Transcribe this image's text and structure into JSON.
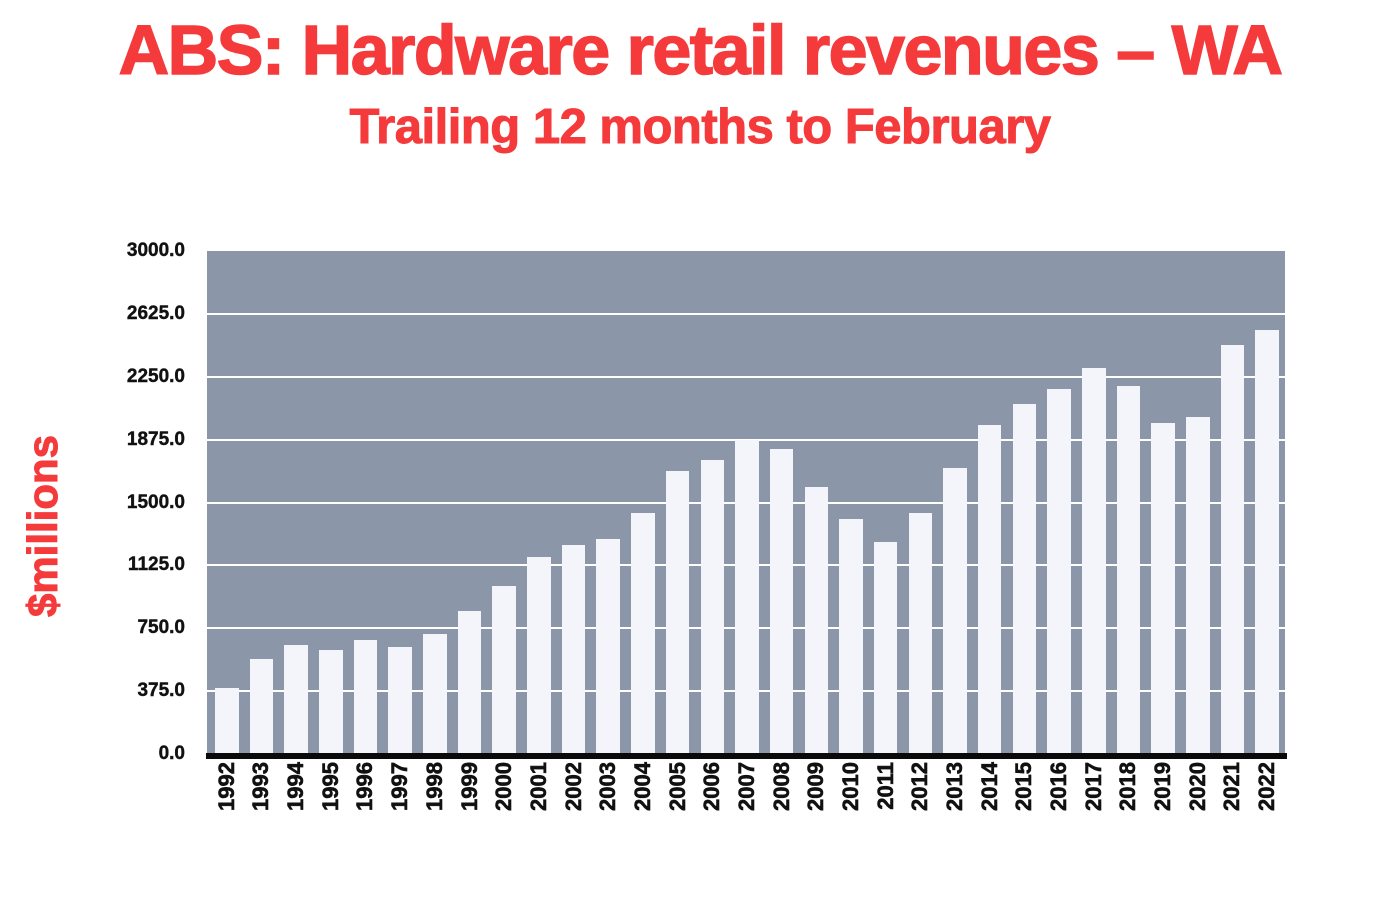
{
  "chart_data": {
    "type": "bar",
    "title": "ABS: Hardware retail revenues – WA",
    "subtitle": "Trailing 12 months to February",
    "ylabel": "$millions",
    "xlabel": "",
    "categories": [
      "1992",
      "1993",
      "1994",
      "1995",
      "1996",
      "1997",
      "1998",
      "1999",
      "2000",
      "2001",
      "2002",
      "2003",
      "2004",
      "2005",
      "2006",
      "2007",
      "2008",
      "2009",
      "2010",
      "2011",
      "2012",
      "2013",
      "2014",
      "2015",
      "2016",
      "2017",
      "2018",
      "2019",
      "2020",
      "2021",
      "2022"
    ],
    "values": [
      395,
      565,
      650,
      620,
      680,
      640,
      715,
      855,
      1000,
      1175,
      1245,
      1285,
      1435,
      1690,
      1755,
      1875,
      1820,
      1590,
      1400,
      1265,
      1440,
      1705,
      1965,
      2085,
      2175,
      2300,
      2195,
      1975,
      2010,
      2440,
      2530
    ],
    "ylim": [
      0,
      3000
    ],
    "ytick_step": 375,
    "ytick_labels": [
      "3000.0",
      "2625.0",
      "2250.0",
      "1875.0",
      "1500.0",
      "1125.0",
      "750.0",
      "375.0",
      "0.0"
    ],
    "grid": "horizontal white gridlines on",
    "legend": "none",
    "colors": {
      "accent_red": "#f53a3c",
      "plot_background": "#8c96a9",
      "bar_fill": "#f3f5fa",
      "gridline": "#ffffff",
      "axis_line": "#0a0a0a",
      "tick_text": "#111111"
    }
  }
}
